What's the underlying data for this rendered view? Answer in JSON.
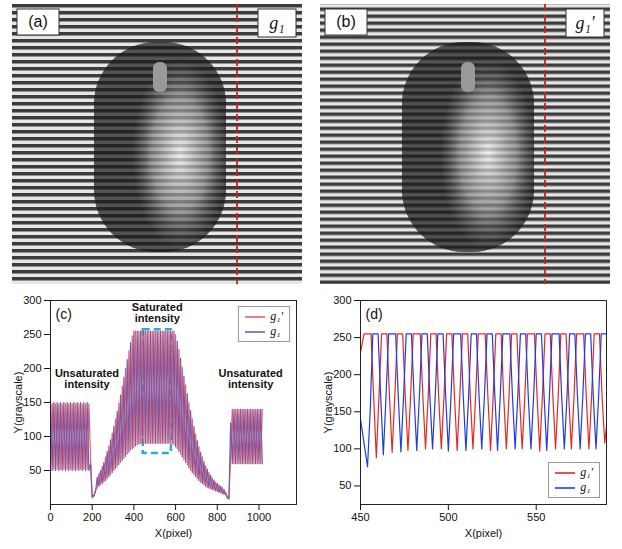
{
  "panels": [
    {
      "type": "image",
      "title": "(a)",
      "label": "g₁"
    },
    {
      "type": "image",
      "title": "(b)",
      "label": "g₁'"
    }
  ],
  "chart_data": [
    {
      "type": "line",
      "title": "(c)",
      "x_label": "X(pixel)",
      "y_label": "Y(grayscale)",
      "xlim": [
        0,
        1180
      ],
      "xticks": [
        0,
        200,
        400,
        600,
        800,
        1000
      ],
      "ylim": [
        0,
        300
      ],
      "yticks": [
        50,
        100,
        150,
        200,
        250,
        300
      ],
      "grid": false,
      "legend": "top-right",
      "x": [
        0,
        8,
        16,
        24,
        32,
        40,
        48,
        56,
        64,
        72,
        80,
        88,
        96,
        104,
        112,
        120,
        128,
        136,
        144,
        152,
        160,
        168,
        176,
        184,
        192,
        200,
        208,
        216,
        224,
        232,
        240,
        248,
        256,
        264,
        272,
        280,
        288,
        296,
        304,
        312,
        320,
        328,
        336,
        344,
        352,
        360,
        368,
        376,
        384,
        392,
        400,
        408,
        416,
        424,
        432,
        440,
        448,
        456,
        464,
        472,
        480,
        488,
        496,
        504,
        512,
        520,
        528,
        536,
        544,
        552,
        560,
        568,
        576,
        584,
        592,
        600,
        608,
        616,
        624,
        632,
        640,
        648,
        656,
        664,
        672,
        680,
        688,
        696,
        704,
        712,
        720,
        728,
        736,
        744,
        752,
        760,
        768,
        776,
        784,
        792,
        800,
        808,
        816,
        824,
        832,
        840,
        848,
        856,
        864,
        872,
        880,
        888,
        896,
        904,
        912,
        920,
        928,
        936,
        944,
        952,
        960,
        968,
        976,
        984,
        992,
        1000,
        1008,
        1016
      ],
      "series": [
        {
          "name": "g₁'",
          "color": "#e0606e",
          "values": [
            52,
            148,
            52,
            148,
            52,
            148,
            52,
            148,
            52,
            148,
            52,
            148,
            52,
            148,
            52,
            148,
            52,
            148,
            52,
            148,
            52,
            148,
            52,
            148,
            70,
            12,
            12,
            22,
            25,
            45,
            29,
            56,
            33,
            70,
            38,
            86,
            44,
            105,
            50,
            126,
            56,
            149,
            62,
            174,
            68,
            200,
            74,
            226,
            80,
            248,
            84,
            255,
            88,
            255,
            90,
            255,
            90,
            255,
            90,
            255,
            90,
            255,
            90,
            255,
            90,
            255,
            90,
            255,
            90,
            255,
            90,
            255,
            90,
            255,
            88,
            250,
            82,
            228,
            74,
            202,
            66,
            176,
            58,
            150,
            50,
            126,
            44,
            104,
            38,
            85,
            33,
            70,
            29,
            57,
            25,
            47,
            23,
            39,
            21,
            33,
            19,
            29,
            17,
            25,
            15,
            18,
            12,
            10,
            70,
            140,
            60,
            140,
            60,
            140,
            60,
            140,
            60,
            140,
            60,
            140,
            60,
            140,
            60,
            140,
            60,
            140,
            60,
            140
          ]
        },
        {
          "name": "g₁",
          "color": "#7a5aa8",
          "values": [
            150,
            50,
            150,
            50,
            150,
            50,
            150,
            50,
            150,
            50,
            150,
            50,
            150,
            50,
            150,
            50,
            150,
            50,
            150,
            50,
            150,
            50,
            150,
            50,
            60,
            10,
            14,
            18,
            40,
            27,
            50,
            31,
            62,
            35,
            78,
            41,
            95,
            47,
            115,
            53,
            137,
            59,
            161,
            65,
            187,
            71,
            213,
            77,
            238,
            82,
            255,
            86,
            255,
            89,
            255,
            90,
            255,
            90,
            255,
            90,
            255,
            90,
            255,
            90,
            255,
            90,
            255,
            90,
            255,
            90,
            255,
            90,
            255,
            90,
            255,
            85,
            240,
            78,
            215,
            70,
            189,
            62,
            163,
            54,
            138,
            47,
            115,
            41,
            94,
            35,
            77,
            31,
            63,
            27,
            52,
            24,
            43,
            22,
            36,
            20,
            31,
            18,
            27,
            16,
            22,
            15,
            10,
            8,
            120,
            60,
            140,
            60,
            140,
            60,
            140,
            60,
            140,
            60,
            140,
            60,
            140,
            60,
            140,
            60,
            140,
            60,
            140,
            60
          ]
        }
      ],
      "annotations": [
        {
          "text": "Unsaturated intensity",
          "x": 175,
          "y": 185
        },
        {
          "text": "Saturated intensity",
          "x": 512,
          "y": 281
        },
        {
          "text": "Unsaturated intensity",
          "x": 960,
          "y": 185
        }
      ],
      "highlight": {
        "x": [
          445,
          580
        ],
        "y": [
          75,
          257
        ],
        "color": "#29abe2",
        "line_style": "dashed"
      }
    },
    {
      "type": "line",
      "title": "(d)",
      "x_label": "X(pixel)",
      "y_label": "Y(grayscale)",
      "xlim": [
        450,
        590
      ],
      "xticks": [
        450,
        500,
        550
      ],
      "ylim": [
        25,
        300
      ],
      "yticks": [
        50,
        100,
        150,
        200,
        250,
        300
      ],
      "grid": false,
      "legend": "bottom-right",
      "series": [
        {
          "name": "g₁'",
          "color": "#e8281e",
          "x": [
            450,
            452,
            456,
            457.5,
            459,
            460.5,
            462,
            465,
            466.5,
            468,
            469.5,
            471,
            474,
            475.5,
            477,
            478.5,
            480,
            484,
            485.5,
            487,
            488.5,
            490,
            493,
            494.5,
            496,
            497.5,
            499,
            502,
            503.5,
            505,
            506.5,
            508,
            511,
            512.5,
            514,
            515.5,
            517,
            521,
            522.5,
            524,
            525.5,
            527,
            530,
            531.5,
            533,
            534.5,
            536,
            539,
            540.5,
            542,
            543.5,
            545,
            549,
            550.5,
            552,
            553.5,
            555,
            558,
            559.5,
            561,
            562.5,
            564,
            567,
            568.5,
            570,
            571.5,
            573,
            577,
            578.5,
            580,
            581.5,
            583,
            586,
            587.5,
            589,
            590
          ],
          "values": [
            230,
            255,
            255,
            170,
            88,
            170,
            255,
            255,
            170,
            95,
            170,
            255,
            255,
            170,
            98,
            170,
            255,
            255,
            170,
            100,
            170,
            255,
            255,
            170,
            100,
            170,
            255,
            255,
            170,
            98,
            170,
            255,
            255,
            170,
            100,
            170,
            255,
            255,
            170,
            98,
            170,
            255,
            255,
            170,
            100,
            170,
            255,
            255,
            170,
            100,
            170,
            255,
            255,
            170,
            97,
            170,
            255,
            255,
            170,
            100,
            170,
            255,
            255,
            170,
            100,
            170,
            255,
            255,
            170,
            100,
            170,
            255,
            255,
            170,
            108,
            130
          ]
        },
        {
          "name": "g₁",
          "color": "#1e3ce6",
          "x": [
            450,
            452.5,
            454,
            455.5,
            457,
            460,
            461.5,
            463,
            464.5,
            466,
            470,
            471.5,
            473,
            474.5,
            476,
            479,
            480.5,
            482,
            483.5,
            485,
            488,
            489.5,
            491,
            492.5,
            494,
            497,
            498.5,
            500,
            501.5,
            503,
            507,
            508.5,
            510,
            511.5,
            513,
            516,
            517.5,
            519,
            520.5,
            522,
            525,
            526.5,
            528,
            529.5,
            531,
            535,
            536.5,
            538,
            539.5,
            541,
            544,
            545.5,
            547,
            548.5,
            550,
            553,
            554.5,
            556,
            557.5,
            559,
            563,
            564.5,
            566,
            567.5,
            569,
            572,
            573.5,
            575,
            576.5,
            578,
            581,
            582.5,
            584,
            585.5,
            587,
            590
          ],
          "values": [
            140,
            100,
            76,
            150,
            255,
            255,
            170,
            92,
            170,
            255,
            255,
            170,
            96,
            170,
            255,
            255,
            170,
            98,
            170,
            255,
            255,
            170,
            100,
            170,
            255,
            255,
            170,
            97,
            170,
            255,
            255,
            170,
            98,
            170,
            255,
            255,
            170,
            100,
            170,
            255,
            255,
            170,
            98,
            170,
            255,
            255,
            170,
            100,
            170,
            255,
            255,
            170,
            100,
            170,
            255,
            255,
            170,
            98,
            170,
            255,
            255,
            170,
            100,
            170,
            255,
            255,
            170,
            100,
            170,
            255,
            255,
            170,
            100,
            170,
            255,
            255
          ]
        }
      ]
    }
  ]
}
